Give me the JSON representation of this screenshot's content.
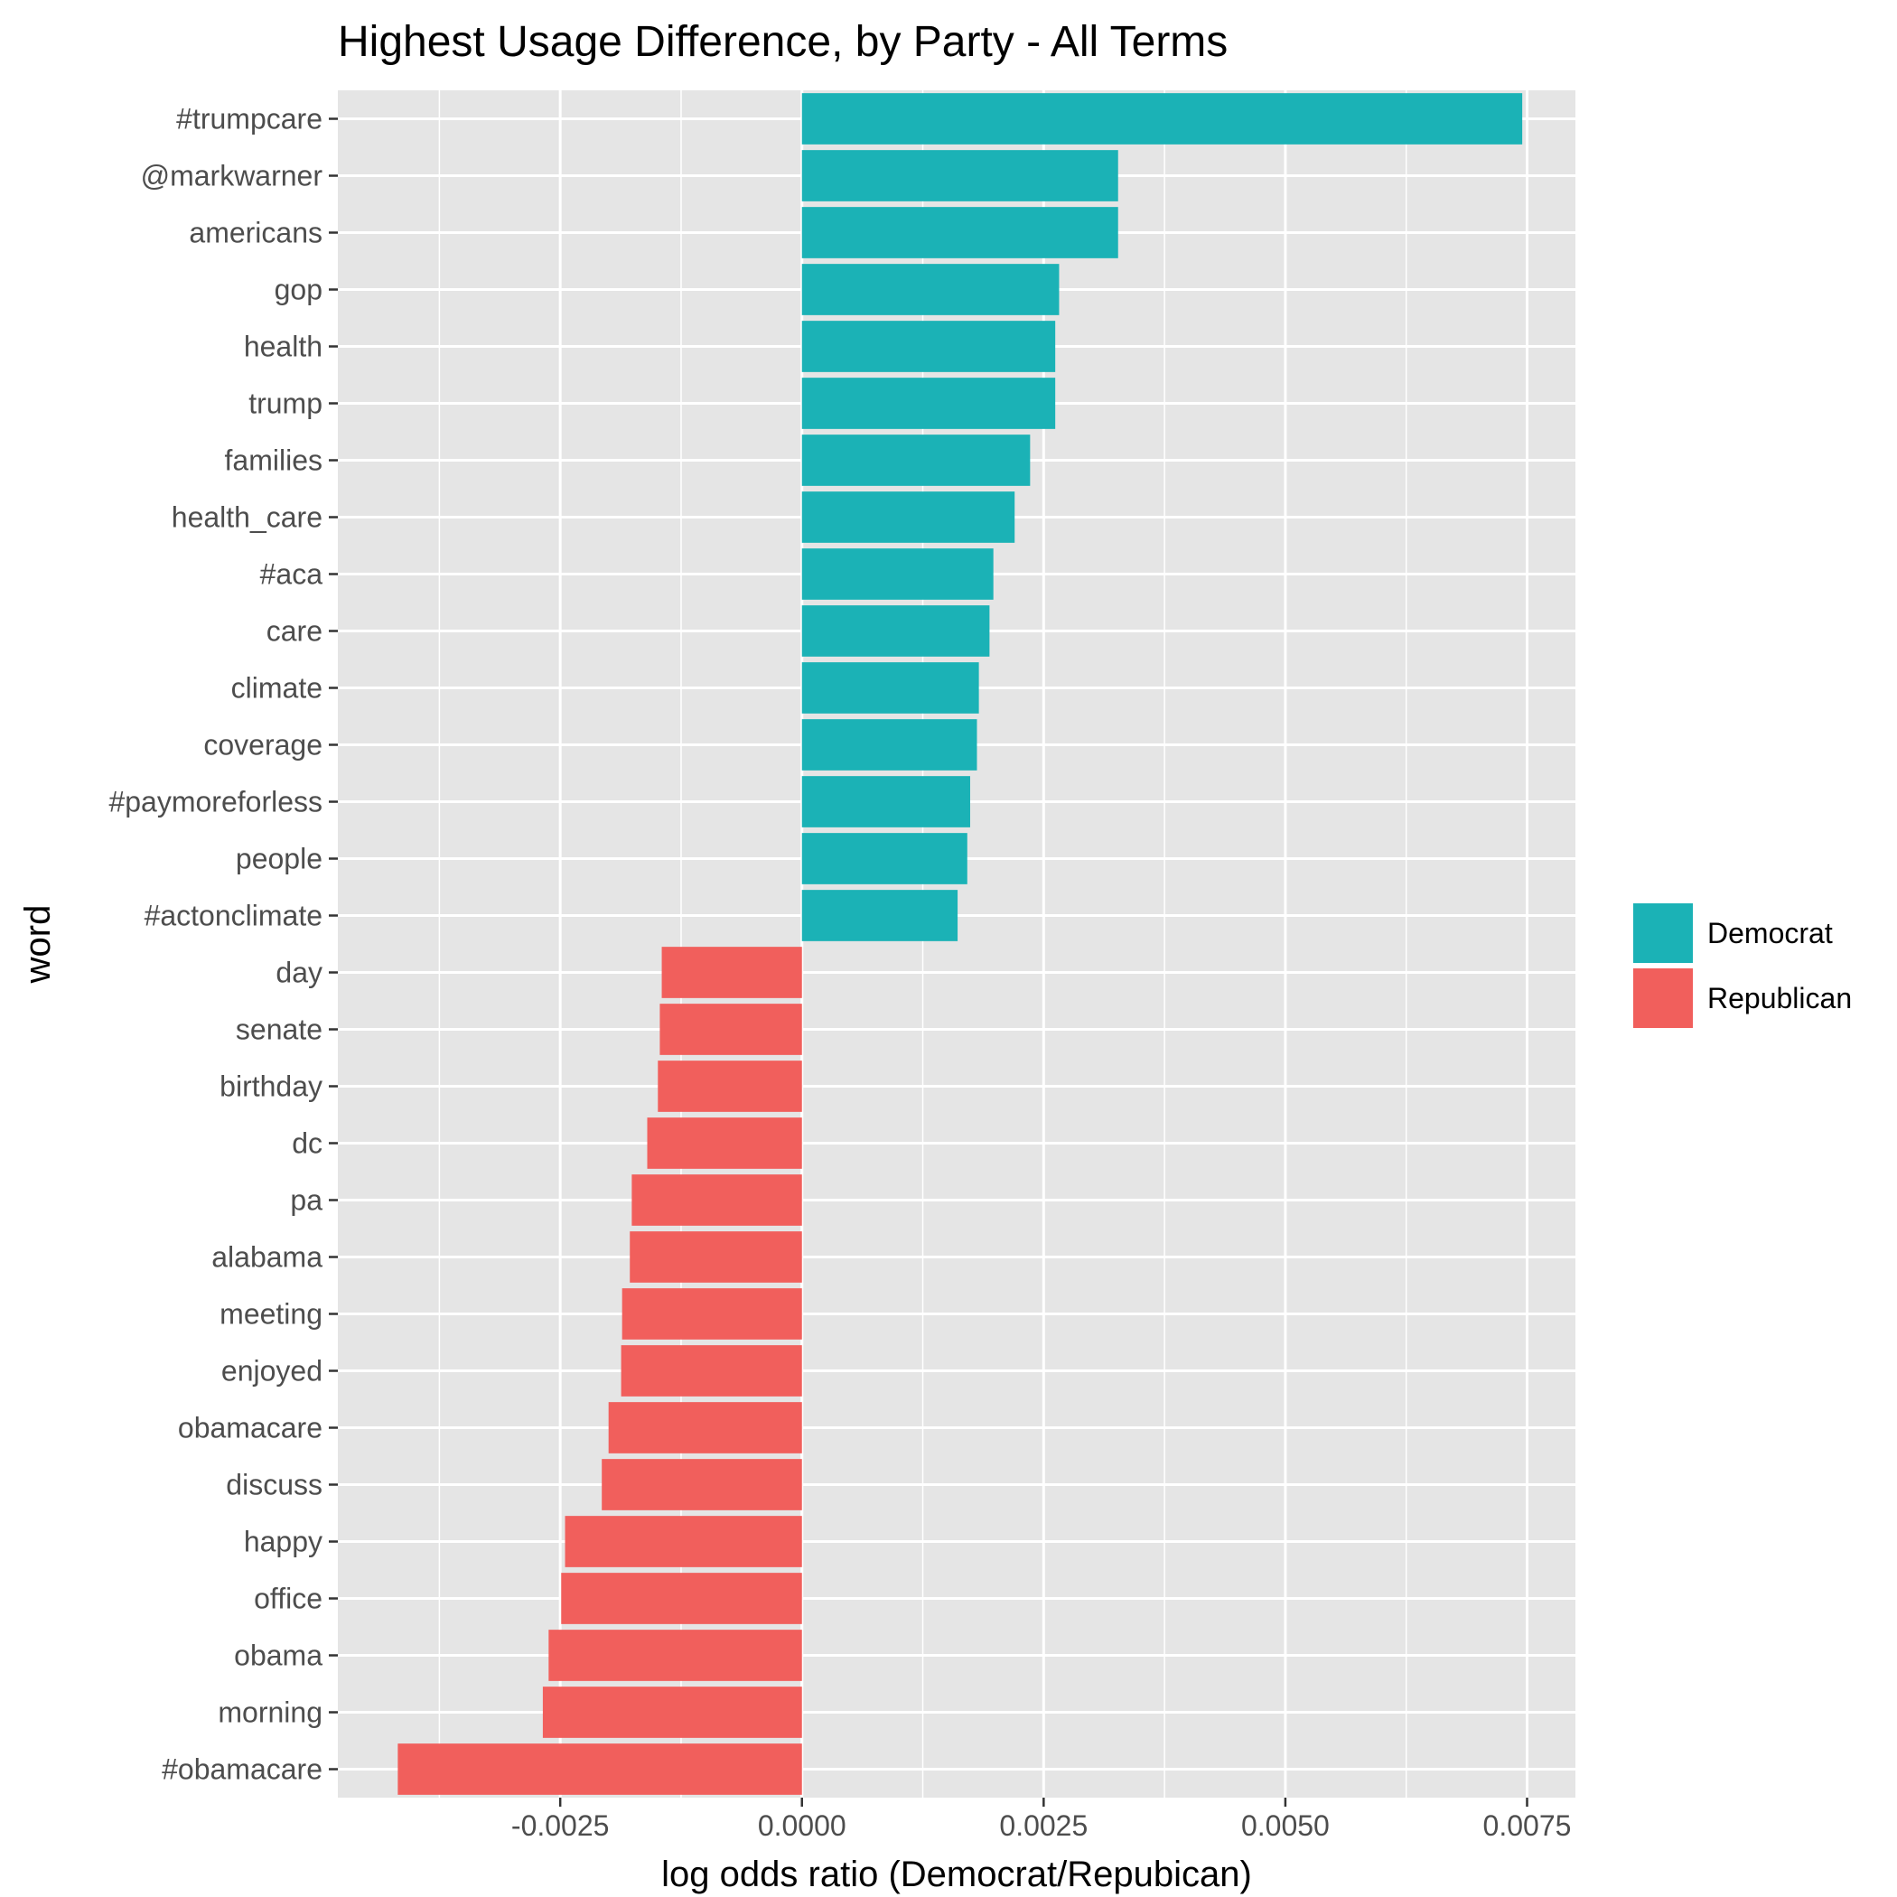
{
  "chart_data": {
    "type": "bar",
    "orientation": "horizontal",
    "title": "Highest Usage Difference, by Party - All Terms",
    "xlabel": "log odds ratio (Democrat/Repubican)",
    "ylabel": "word",
    "xlim": [
      -0.0048,
      0.008
    ],
    "xticks": [
      -0.0025,
      0.0,
      0.0025,
      0.005,
      0.0075
    ],
    "xtick_labels": [
      "-0.0025",
      "0.0000",
      "0.0025",
      "0.0050",
      "0.0075"
    ],
    "grid": true,
    "legend": {
      "position": "right",
      "entries": [
        {
          "name": "Democrat",
          "color": "#1BB2B6"
        },
        {
          "name": "Republican",
          "color": "#F15F5C"
        }
      ]
    },
    "categories": [
      "#trumpcare",
      "@markwarner",
      "americans",
      "gop",
      "health",
      "trump",
      "families",
      "health_care",
      "#aca",
      "care",
      "climate",
      "coverage",
      "#paymoreforless",
      "people",
      "#actonclimate",
      "day",
      "senate",
      "birthday",
      "dc",
      "pa",
      "alabama",
      "meeting",
      "enjoyed",
      "obamacare",
      "discuss",
      "happy",
      "office",
      "obama",
      "morning",
      "#obamacare"
    ],
    "values": [
      0.00745,
      0.00327,
      0.00327,
      0.00266,
      0.00262,
      0.00262,
      0.00236,
      0.0022,
      0.00198,
      0.00194,
      0.00183,
      0.00181,
      0.00174,
      0.00171,
      0.00161,
      -0.00145,
      -0.00147,
      -0.00149,
      -0.0016,
      -0.00176,
      -0.00178,
      -0.00186,
      -0.00187,
      -0.002,
      -0.00207,
      -0.00245,
      -0.00249,
      -0.00262,
      -0.00268,
      -0.00418
    ],
    "party": [
      "Democrat",
      "Democrat",
      "Democrat",
      "Democrat",
      "Democrat",
      "Democrat",
      "Democrat",
      "Democrat",
      "Democrat",
      "Democrat",
      "Democrat",
      "Democrat",
      "Democrat",
      "Democrat",
      "Democrat",
      "Republican",
      "Republican",
      "Republican",
      "Republican",
      "Republican",
      "Republican",
      "Republican",
      "Republican",
      "Republican",
      "Republican",
      "Republican",
      "Republican",
      "Republican",
      "Republican",
      "Republican"
    ]
  },
  "colors": {
    "panel_background": "#E5E5E5",
    "grid_line": "#FFFFFF",
    "tick_mark": "#333333"
  }
}
